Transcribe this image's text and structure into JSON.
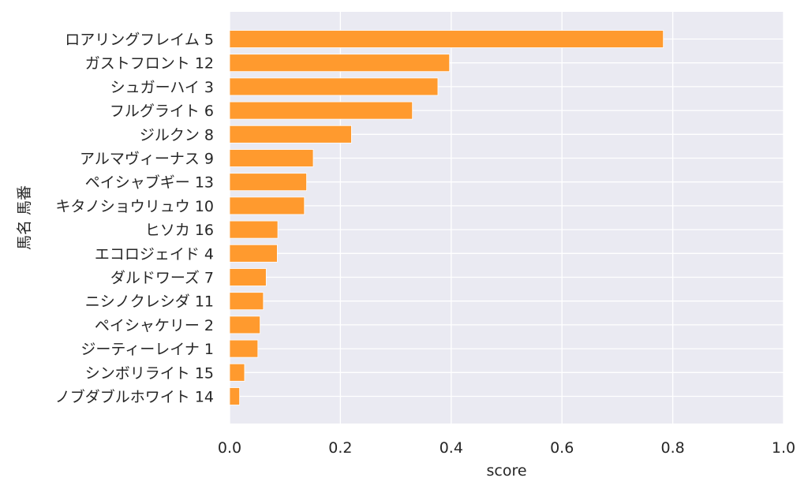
{
  "chart_data": {
    "type": "bar",
    "orientation": "horizontal",
    "title": "",
    "xlabel": "score",
    "ylabel": "馬名 馬番",
    "xlim": [
      0.0,
      1.0
    ],
    "xticks": [
      "0.0",
      "0.2",
      "0.4",
      "0.6",
      "0.8",
      "1.0"
    ],
    "grid": true,
    "bar_color": "#ff9a2e",
    "background_color": "#eaeaf2",
    "categories": [
      "ロアリングフレイム 5",
      "ガストフロント 12",
      "シュガーハイ 3",
      "フルグライト 6",
      "ジルクン 8",
      "アルマヴィーナス 9",
      "ペイシャブギー 13",
      "キタノショウリュウ 10",
      "ヒソカ 16",
      "エコロジェイド 4",
      "ダルドワーズ 7",
      "ニシノクレシダ 11",
      "ペイシャケリー 2",
      "ジーティーレイナ 1",
      "シンボリライト 15",
      "ノブダブルホワイト 14"
    ],
    "values": [
      0.783,
      0.397,
      0.376,
      0.33,
      0.22,
      0.151,
      0.139,
      0.135,
      0.087,
      0.086,
      0.066,
      0.061,
      0.055,
      0.051,
      0.027,
      0.018
    ]
  }
}
